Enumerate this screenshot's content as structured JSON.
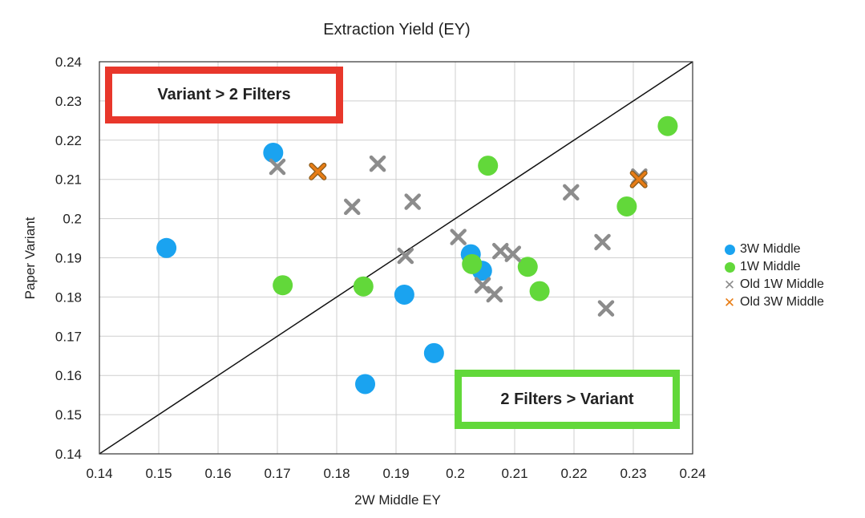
{
  "chart_data": {
    "type": "scatter",
    "title": "Extraction Yield (EY)",
    "xlabel": "2W Middle EY",
    "ylabel": "Paper Variant",
    "xlim": [
      0.14,
      0.24
    ],
    "ylim": [
      0.14,
      0.24
    ],
    "x_ticks": [
      "0.14",
      "0.15",
      "0.16",
      "0.17",
      "0.18",
      "0.19",
      "0.2",
      "0.21",
      "0.22",
      "0.23",
      "0.24"
    ],
    "y_ticks": [
      "0.14",
      "0.15",
      "0.16",
      "0.17",
      "0.18",
      "0.19",
      "0.2",
      "0.21",
      "0.22",
      "0.23",
      "0.24"
    ],
    "grid": true,
    "reference_line": {
      "from": [
        0.14,
        0.14
      ],
      "to": [
        0.24,
        0.24
      ]
    },
    "legend_position": "right",
    "series": [
      {
        "name": "3W Middle",
        "marker": "circle",
        "color": "#1aa3f0",
        "points": [
          [
            0.1513,
            0.1925
          ],
          [
            0.1693,
            0.2168
          ],
          [
            0.1848,
            0.1578
          ],
          [
            0.1914,
            0.1806
          ],
          [
            0.1964,
            0.1657
          ],
          [
            0.2026,
            0.1909
          ],
          [
            0.2045,
            0.1867
          ]
        ]
      },
      {
        "name": "1W Middle",
        "marker": "circle",
        "color": "#62d83a",
        "points": [
          [
            0.1709,
            0.183
          ],
          [
            0.1845,
            0.1827
          ],
          [
            0.2028,
            0.1884
          ],
          [
            0.2055,
            0.2135
          ],
          [
            0.2122,
            0.1877
          ],
          [
            0.2142,
            0.1815
          ],
          [
            0.2289,
            0.2031
          ],
          [
            0.2358,
            0.2236
          ]
        ]
      },
      {
        "name": "Old 1W Middle",
        "marker": "x",
        "color": "#8c8c8c",
        "points": [
          [
            0.17,
            0.2132
          ],
          [
            0.1826,
            0.203
          ],
          [
            0.1869,
            0.214
          ],
          [
            0.1916,
            0.1905
          ],
          [
            0.1928,
            0.2043
          ],
          [
            0.2005,
            0.1953
          ],
          [
            0.2046,
            0.183
          ],
          [
            0.2066,
            0.1807
          ],
          [
            0.2076,
            0.1917
          ],
          [
            0.2097,
            0.191
          ],
          [
            0.2195,
            0.2067
          ],
          [
            0.2248,
            0.194
          ],
          [
            0.2254,
            0.1771
          ],
          [
            0.231,
            0.2107
          ]
        ]
      },
      {
        "name": "Old 3W Middle",
        "marker": "x",
        "color": "#e87d16",
        "points": [
          [
            0.1768,
            0.212
          ],
          [
            0.2309,
            0.21
          ]
        ]
      }
    ],
    "annotations": [
      {
        "text": "Variant > 2 Filters",
        "color": "#e8372b"
      },
      {
        "text": "2 Filters > Variant",
        "color": "#62d83a"
      }
    ]
  }
}
